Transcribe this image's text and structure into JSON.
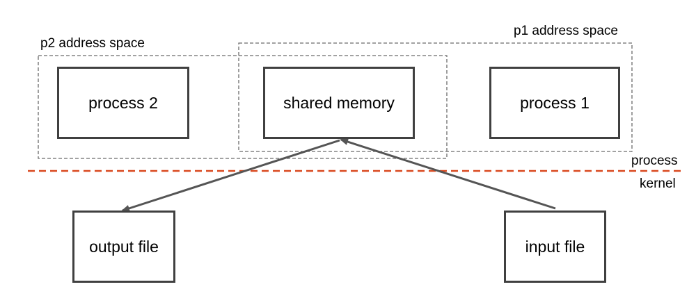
{
  "regions": {
    "p2_address_space": "p2 address space",
    "p1_address_space": "p1 address space"
  },
  "nodes": {
    "process_2": "process 2",
    "shared_memory": "shared memory",
    "process_1": "process 1",
    "output_file": "output file",
    "input_file": "input file"
  },
  "boundary": {
    "upper_label": "process",
    "lower_label": "kernel"
  },
  "colors": {
    "boundary_line": "#d9491f",
    "box_border": "#404040",
    "dashed_border": "#6b6b6b",
    "arrow": "#555555"
  }
}
